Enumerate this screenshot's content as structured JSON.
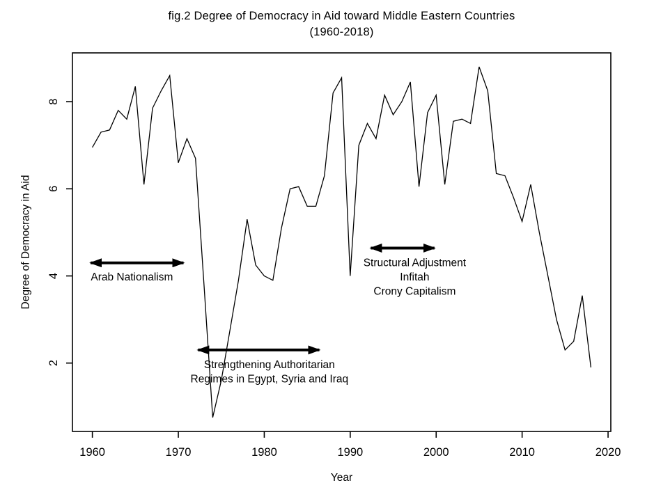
{
  "figure": {
    "background": "#ffffff",
    "text_color": "#000000"
  },
  "chart_data": {
    "type": "line",
    "title": "fig.2 Degree of Democracy in Aid  toward Middle Eastern Countries",
    "subtitle": "(1960-2018)",
    "xlabel": "Year",
    "ylabel": "Degree of Democracy in Aid",
    "line_color": "#000000",
    "grid": false,
    "legend": "none",
    "xlim": [
      1957.68,
      2020.32
    ],
    "ylim": [
      0.43,
      9.12
    ],
    "xticks": [
      1960,
      1970,
      1980,
      1990,
      2000,
      2010,
      2020
    ],
    "yticks": [
      2,
      4,
      6,
      8
    ],
    "x": [
      1960,
      1961,
      1962,
      1963,
      1964,
      1965,
      1966,
      1967,
      1968,
      1969,
      1970,
      1971,
      1972,
      1973,
      1974,
      1975,
      1976,
      1977,
      1978,
      1979,
      1980,
      1981,
      1982,
      1983,
      1984,
      1985,
      1986,
      1987,
      1988,
      1989,
      1990,
      1991,
      1992,
      1993,
      1994,
      1995,
      1996,
      1997,
      1998,
      1999,
      2000,
      2001,
      2002,
      2003,
      2004,
      2005,
      2006,
      2007,
      2008,
      2009,
      2010,
      2011,
      2012,
      2013,
      2014,
      2015,
      2016,
      2017,
      2018
    ],
    "values": [
      6.95,
      7.3,
      7.35,
      7.8,
      7.6,
      8.35,
      6.1,
      7.85,
      8.25,
      8.6,
      6.6,
      7.15,
      6.7,
      3.75,
      0.75,
      1.6,
      2.75,
      3.9,
      5.3,
      4.25,
      4.0,
      3.9,
      5.1,
      6.0,
      6.05,
      5.6,
      5.6,
      6.3,
      8.2,
      8.55,
      4.0,
      7.0,
      7.5,
      7.15,
      8.15,
      7.7,
      8.0,
      8.45,
      6.05,
      7.75,
      8.15,
      6.1,
      7.55,
      7.6,
      7.5,
      8.8,
      8.25,
      6.35,
      6.3,
      5.8,
      5.25,
      6.1,
      5.0,
      4.0,
      3.0,
      2.3,
      2.5,
      3.55,
      1.9
    ],
    "annotations": [
      {
        "name": "arab-nationalism",
        "arrow": {
          "x1": 1958.5,
          "x2": 1971.9,
          "v": 4.3
        },
        "label": {
          "x": 1964.6,
          "v": 3.9,
          "lines": [
            "Arab Nationalism"
          ]
        }
      },
      {
        "name": "strengthening-authoritarian-regimes",
        "arrow": {
          "x1": 1971.0,
          "x2": 1987.7,
          "v": 2.3
        },
        "label": {
          "x": 1980.6,
          "v": 1.88,
          "lines": [
            "Strengthening Authoritarian",
            "Regimes in Egypt, Syria and Iraq"
          ]
        }
      },
      {
        "name": "structural-adjustment-infitah",
        "arrow": {
          "x1": 1991.1,
          "x2": 2001.1,
          "v": 4.64
        },
        "label": {
          "x": 1997.5,
          "v": 4.22,
          "lines": [
            "Structural Adjustment",
            "Infitah",
            "Crony Capitalism"
          ]
        }
      }
    ]
  }
}
